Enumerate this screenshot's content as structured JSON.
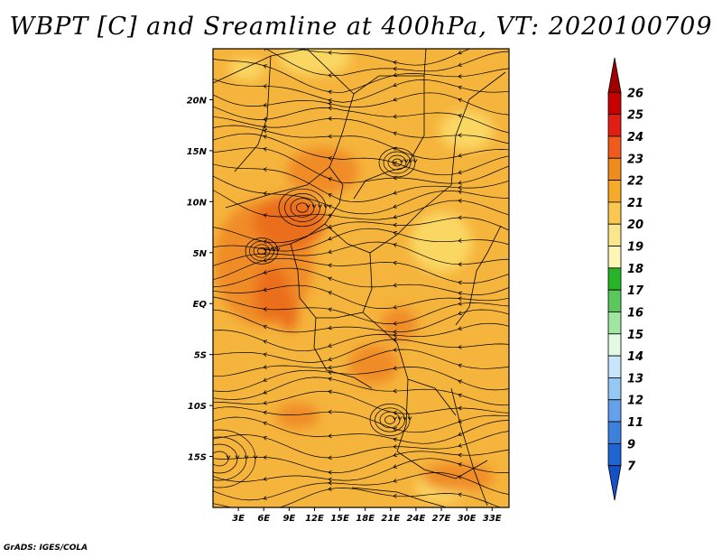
{
  "title": "WBPT [C] and Sreamline at 400hPa, VT: 2020100709",
  "credit": "GrADS: IGES/COLA",
  "map": {
    "lon_labels": [
      "3E",
      "6E",
      "9E",
      "12E",
      "15E",
      "18E",
      "21E",
      "24E",
      "27E",
      "30E",
      "33E"
    ],
    "lat_labels": [
      "20N",
      "15N",
      "10N",
      "5N",
      "EQ",
      "5S",
      "10S",
      "15S"
    ],
    "lon_values": [
      3,
      6,
      9,
      12,
      15,
      18,
      21,
      24,
      27,
      30,
      33
    ],
    "lat_values": [
      20,
      15,
      10,
      5,
      0,
      -5,
      -10,
      -15
    ],
    "lon_range": [
      0,
      35
    ],
    "lat_range": [
      -20,
      25
    ]
  },
  "colorbar": {
    "labels": [
      "26",
      "25",
      "24",
      "23",
      "22",
      "21",
      "20",
      "19",
      "18",
      "17",
      "16",
      "15",
      "14",
      "13",
      "12",
      "11",
      "9",
      "7"
    ],
    "colors": [
      "#a00000",
      "#c80000",
      "#e11e14",
      "#f05a1e",
      "#f08c1e",
      "#f5aa28",
      "#fac850",
      "#fae68c",
      "#fff5b4",
      "#28b428",
      "#5ac85a",
      "#a0e6a0",
      "#e1fae1",
      "#c8e6fa",
      "#96c8f5",
      "#64a0eb",
      "#3c82dc",
      "#1e64d2",
      "#1450c8"
    ]
  },
  "colors": {
    "field_base": "#f5b43c",
    "field_warm": "#f08c28",
    "field_hot": "#eb6e1e",
    "field_cool": "#fad764",
    "streamline": "#000000",
    "boundary": "#000000"
  }
}
